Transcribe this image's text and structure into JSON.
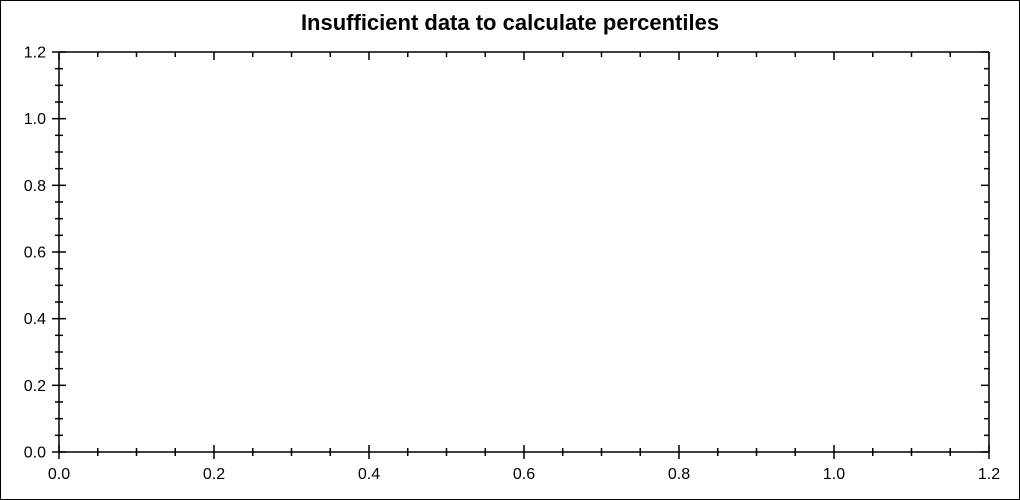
{
  "page": {
    "background": "#ffffff",
    "border_color": "#000000"
  },
  "chart_data": {
    "type": "scatter",
    "title": "Insufficient data to calculate percentiles",
    "series": [],
    "xlabel": "",
    "ylabel": "",
    "xlim": [
      0.0,
      1.2
    ],
    "ylim": [
      0.0,
      1.2
    ],
    "x_major_ticks": [
      0.0,
      0.2,
      0.4,
      0.6,
      0.8,
      1.0,
      1.2
    ],
    "y_major_ticks": [
      0.0,
      0.2,
      0.4,
      0.6,
      0.8,
      1.0,
      1.2
    ],
    "x_tick_labels": [
      "0.0",
      "0.2",
      "0.4",
      "0.6",
      "0.8",
      "1.0",
      "1.2"
    ],
    "y_tick_labels": [
      "0.0",
      "0.2",
      "0.4",
      "0.6",
      "0.8",
      "1.0",
      "1.2"
    ],
    "minor_tick_interval": 0.05,
    "minor_ticks_per_major": 4,
    "grid": false,
    "legend": false,
    "axis_color": "#000000",
    "title_color": "#000000"
  }
}
